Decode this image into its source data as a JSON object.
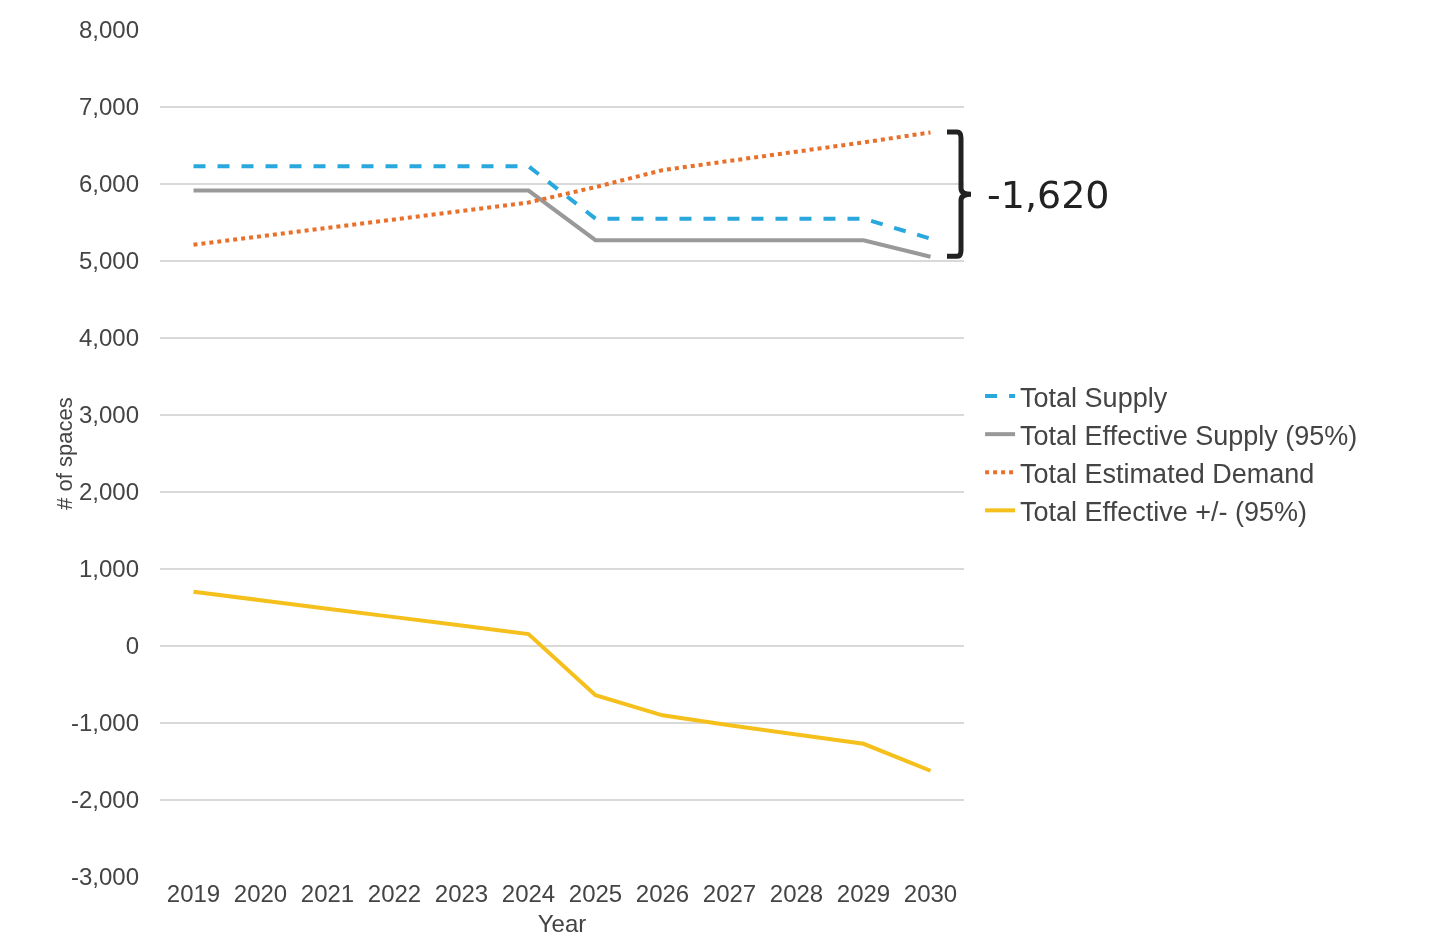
{
  "chart_data": {
    "type": "line",
    "xlabel": "Year",
    "ylabel": "# of spaces",
    "categories": [
      "2019",
      "2020",
      "2021",
      "2022",
      "2023",
      "2024",
      "2025",
      "2026",
      "2027",
      "2028",
      "2029",
      "2030"
    ],
    "series": [
      {
        "name": "Total Supply",
        "color": "#29a8dd",
        "line_style": "dashed",
        "values": [
          6230,
          6230,
          6230,
          6230,
          6230,
          6230,
          5550,
          5550,
          5550,
          5550,
          5550,
          5290
        ]
      },
      {
        "name": "Total Effective Supply (95%)",
        "color": "#999999",
        "line_style": "solid",
        "values": [
          5915,
          5915,
          5915,
          5915,
          5915,
          5915,
          5270,
          5270,
          5270,
          5270,
          5270,
          5055
        ]
      },
      {
        "name": "Total Estimated Demand",
        "color": "#e8702a",
        "line_style": "dotted",
        "values": [
          5210,
          5320,
          5430,
          5540,
          5650,
          5760,
          5960,
          6180,
          6300,
          6420,
          6540,
          6670
        ]
      },
      {
        "name": "Total Effective +/- (95%)",
        "color": "#f5c01c",
        "line_style": "solid",
        "values": [
          705,
          595,
          485,
          375,
          265,
          155,
          -640,
          -900,
          -1030,
          -1150,
          -1270,
          -1620
        ]
      }
    ],
    "ylim": [
      -3000,
      8000
    ],
    "yticks": [
      {
        "value": -3000,
        "label": "-3,000"
      },
      {
        "value": -2000,
        "label": "-2,000"
      },
      {
        "value": -1000,
        "label": "-1,000"
      },
      0,
      {
        "value": 1000,
        "label": "1,000"
      },
      {
        "value": 2000,
        "label": "2,000"
      },
      {
        "value": 3000,
        "label": "3,000"
      },
      {
        "value": 4000,
        "label": "4,000"
      },
      {
        "value": 5000,
        "label": "5,000"
      },
      {
        "value": 6000,
        "label": "6,000"
      },
      {
        "value": 7000,
        "label": "7,000"
      },
      {
        "value": 8000,
        "label": "8,000"
      }
    ],
    "grid": "y",
    "legend": "right",
    "marker": "none",
    "annotations": [
      "-1,620"
    ]
  }
}
